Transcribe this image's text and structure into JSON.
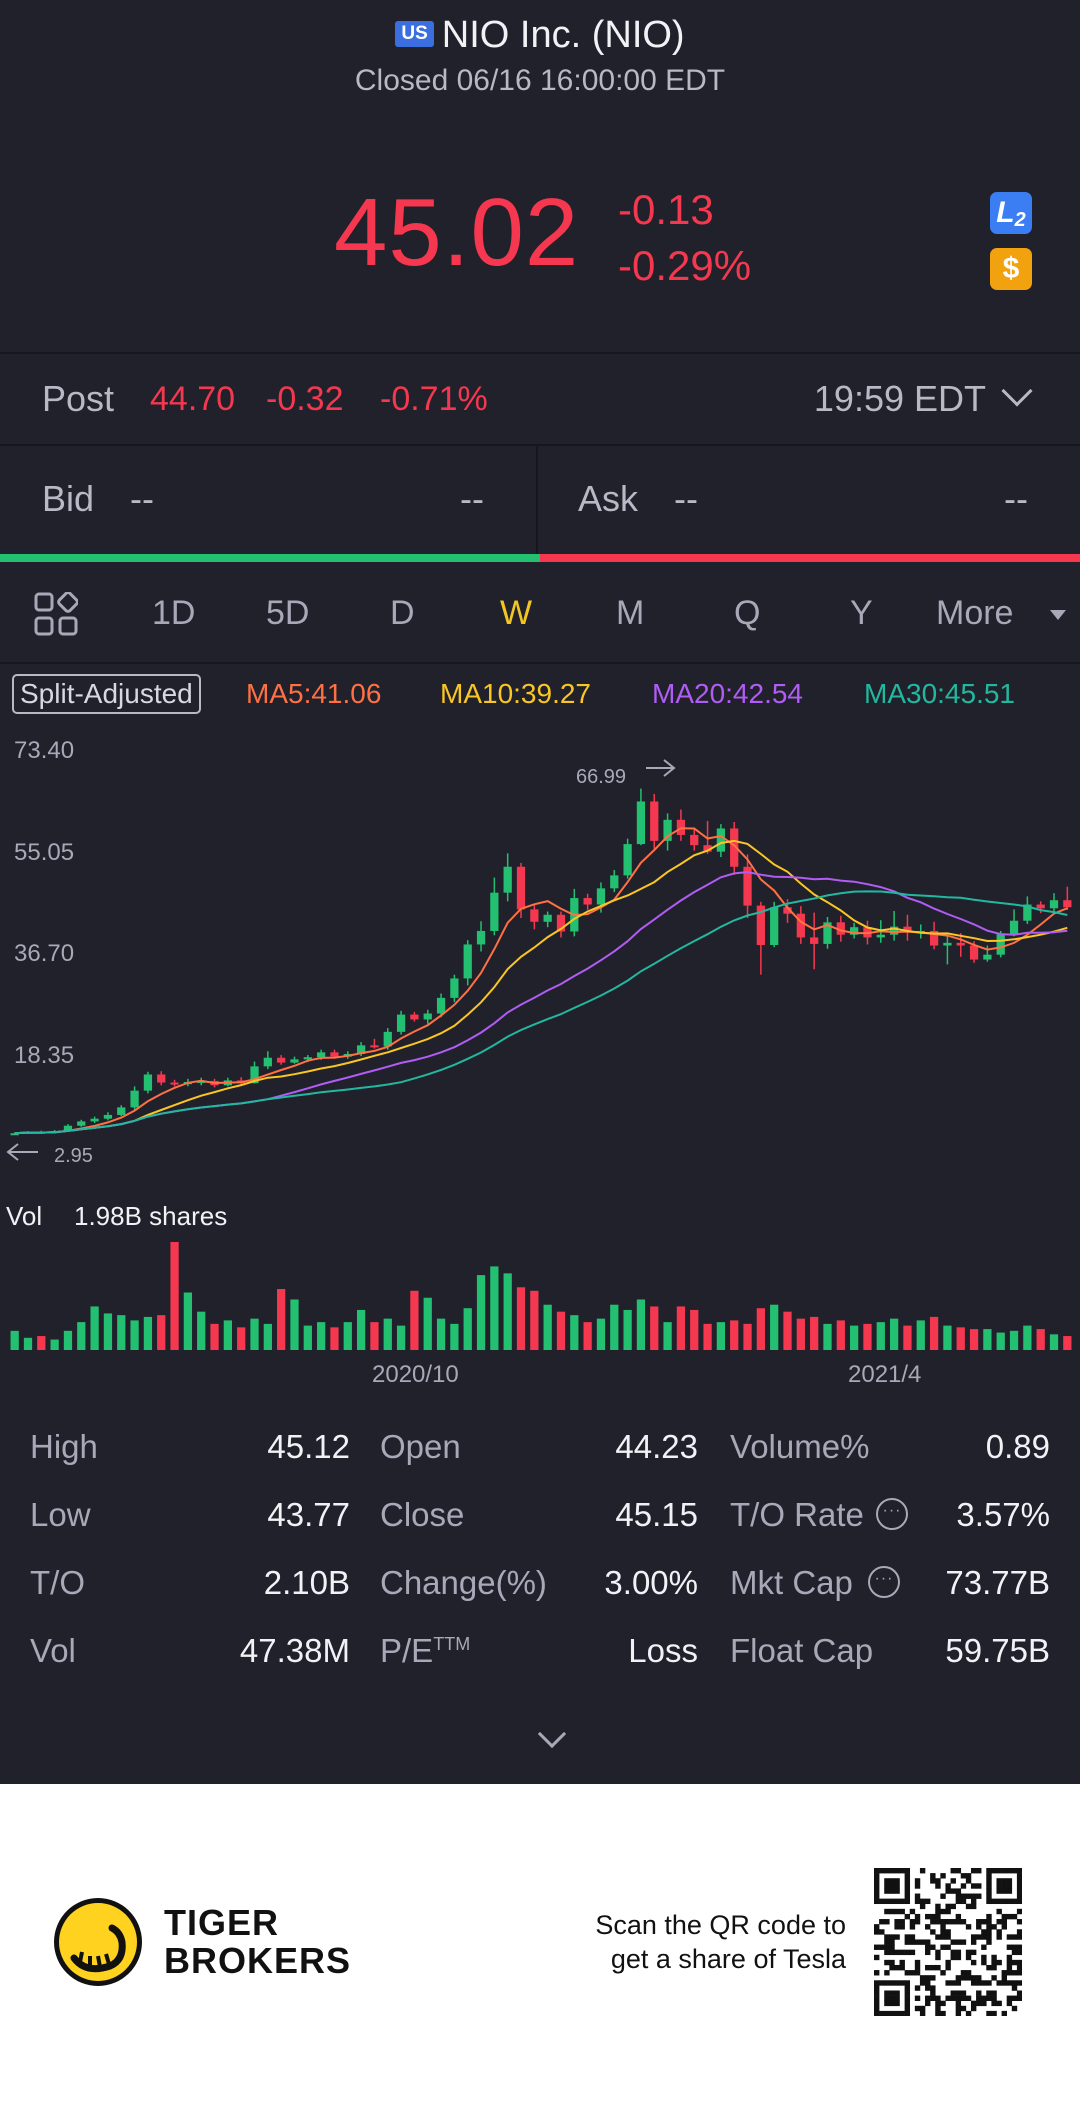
{
  "header": {
    "market_badge": "US",
    "title": "NIO Inc. (NIO)",
    "status": "Closed 06/16 16:00:00 EDT"
  },
  "quote": {
    "price": "45.02",
    "change": "-0.13",
    "change_pct": "-0.29%",
    "l2_badge": "L2",
    "dollar_badge": "$"
  },
  "post": {
    "label": "Post",
    "price": "44.70",
    "change": "-0.32",
    "change_pct": "-0.71%",
    "time": "19:59 EDT"
  },
  "bidask": {
    "bid_label": "Bid",
    "bid_value": "--",
    "bid_size": "--",
    "ask_label": "Ask",
    "ask_value": "--",
    "ask_size": "--"
  },
  "periods": {
    "items": [
      "1D",
      "5D",
      "D",
      "W",
      "M",
      "Q",
      "Y"
    ],
    "active": "W",
    "more_label": "More"
  },
  "indicators": {
    "split_label": "Split-Adjusted",
    "ma5": "MA5:41.06",
    "ma10": "MA10:39.27",
    "ma20": "MA20:42.54",
    "ma30": "MA30:45.51",
    "colors": {
      "ma5": "#ff7043",
      "ma10": "#f9c623",
      "ma20": "#b05cf5",
      "ma30": "#22b8a0",
      "up": "#22c070",
      "down": "#f5384f"
    }
  },
  "chart_data": {
    "type": "candlestick",
    "y_ticks": [
      "73.40",
      "55.05",
      "36.70",
      "18.35"
    ],
    "high_marker": "66.99",
    "low_marker": "2.95",
    "x_ticks": [
      "2020/10",
      "2021/4"
    ],
    "volume_label": "Vol",
    "volume_value": "1.98B shares",
    "ylim": [
      0,
      73.4
    ],
    "candles": [
      [
        3.0,
        3.1,
        2.95,
        3.2
      ],
      [
        3.1,
        3.4,
        3.0,
        3.5
      ],
      [
        3.4,
        3.2,
        3.1,
        3.6
      ],
      [
        3.2,
        3.5,
        3.1,
        3.7
      ],
      [
        3.5,
        4.5,
        3.4,
        4.8
      ],
      [
        4.5,
        5.3,
        4.3,
        5.6
      ],
      [
        5.3,
        5.8,
        5.0,
        6.2
      ],
      [
        5.8,
        6.5,
        5.5,
        7.0
      ],
      [
        6.5,
        7.9,
        6.3,
        8.3
      ],
      [
        7.9,
        11.0,
        7.5,
        11.8
      ],
      [
        11.0,
        14.0,
        10.5,
        14.5
      ],
      [
        14.0,
        12.5,
        12.0,
        14.6
      ],
      [
        12.5,
        12.2,
        11.8,
        13.0
      ],
      [
        12.2,
        12.6,
        11.8,
        13.2
      ],
      [
        12.6,
        12.8,
        12.0,
        13.4
      ],
      [
        12.8,
        12.0,
        11.6,
        13.2
      ],
      [
        12.0,
        12.9,
        11.8,
        13.4
      ],
      [
        12.9,
        12.4,
        12.0,
        13.5
      ],
      [
        12.4,
        15.5,
        12.3,
        16.4
      ],
      [
        15.5,
        17.1,
        15.0,
        18.3
      ],
      [
        17.1,
        16.2,
        15.8,
        17.6
      ],
      [
        16.2,
        16.8,
        16.0,
        17.3
      ],
      [
        16.8,
        17.2,
        16.3,
        17.6
      ],
      [
        17.2,
        18.1,
        16.7,
        18.6
      ],
      [
        18.1,
        17.3,
        16.9,
        18.6
      ],
      [
        17.3,
        17.8,
        16.9,
        18.3
      ],
      [
        17.8,
        19.4,
        17.4,
        20.0
      ],
      [
        19.4,
        19.2,
        18.8,
        20.6
      ],
      [
        19.2,
        21.9,
        18.6,
        22.6
      ],
      [
        21.9,
        25.1,
        21.4,
        25.8
      ],
      [
        25.1,
        24.2,
        23.8,
        25.6
      ],
      [
        24.2,
        25.3,
        23.4,
        26.0
      ],
      [
        25.3,
        28.2,
        24.6,
        29.0
      ],
      [
        28.2,
        31.8,
        27.4,
        32.5
      ],
      [
        31.8,
        38.1,
        30.5,
        38.9
      ],
      [
        38.1,
        40.6,
        36.8,
        42.4
      ],
      [
        40.6,
        47.7,
        39.8,
        50.5
      ],
      [
        47.7,
        52.5,
        46.1,
        55.0
      ],
      [
        52.5,
        44.6,
        43.0,
        53.2
      ],
      [
        44.6,
        42.3,
        40.9,
        45.5
      ],
      [
        42.3,
        43.6,
        41.3,
        44.2
      ],
      [
        43.6,
        40.5,
        39.4,
        44.2
      ],
      [
        40.5,
        46.7,
        39.6,
        48.4
      ],
      [
        46.7,
        45.5,
        44.5,
        47.5
      ],
      [
        45.5,
        48.5,
        44.0,
        49.6
      ],
      [
        48.5,
        50.9,
        47.8,
        51.9
      ],
      [
        50.9,
        56.7,
        50.3,
        57.7
      ],
      [
        56.7,
        64.6,
        56.5,
        66.99
      ],
      [
        64.6,
        57.3,
        55.8,
        66.0
      ],
      [
        57.3,
        61.2,
        55.5,
        62.4
      ],
      [
        61.2,
        58.4,
        57.3,
        63.1
      ],
      [
        58.4,
        56.5,
        55.5,
        59.7
      ],
      [
        56.5,
        55.3,
        54.9,
        61.0
      ],
      [
        55.3,
        59.6,
        54.3,
        60.4
      ],
      [
        59.6,
        52.5,
        51.0,
        60.8
      ],
      [
        52.5,
        45.3,
        43.0,
        54.8
      ],
      [
        45.3,
        38.0,
        32.5,
        46.0
      ],
      [
        38.0,
        45.0,
        37.6,
        46.0
      ],
      [
        45.0,
        43.8,
        42.1,
        46.5
      ],
      [
        43.8,
        39.4,
        38.2,
        45.2
      ],
      [
        39.4,
        38.2,
        33.5,
        44.0
      ],
      [
        38.2,
        42.2,
        37.3,
        43.2
      ],
      [
        42.2,
        39.9,
        38.6,
        43.4
      ],
      [
        39.9,
        41.3,
        39.2,
        42.1
      ],
      [
        41.3,
        39.4,
        38.1,
        42.5
      ],
      [
        39.4,
        39.9,
        38.4,
        42.6
      ],
      [
        39.9,
        41.4,
        38.8,
        44.3
      ],
      [
        41.4,
        40.4,
        38.8,
        43.6
      ],
      [
        40.4,
        40.6,
        39.2,
        41.8
      ],
      [
        40.6,
        37.9,
        37.2,
        42.3
      ],
      [
        37.9,
        38.4,
        34.4,
        39.7
      ],
      [
        38.4,
        37.9,
        35.8,
        40.2
      ],
      [
        37.9,
        35.3,
        34.7,
        38.7
      ],
      [
        35.3,
        36.2,
        34.9,
        37.9
      ],
      [
        36.2,
        40.0,
        35.7,
        40.6
      ],
      [
        40.0,
        42.5,
        39.6,
        44.6
      ],
      [
        42.5,
        45.5,
        41.9,
        47.0
      ],
      [
        45.5,
        44.8,
        43.9,
        46.1
      ],
      [
        44.8,
        46.3,
        44.1,
        47.6
      ],
      [
        46.3,
        45.0,
        44.5,
        48.8
      ]
    ],
    "volumes": [
      0.55,
      0.35,
      0.4,
      0.3,
      0.55,
      0.8,
      1.25,
      1.05,
      1.0,
      0.85,
      0.95,
      1.0,
      3.1,
      1.65,
      1.1,
      0.75,
      0.85,
      0.65,
      0.9,
      0.75,
      1.75,
      1.45,
      0.7,
      0.8,
      0.65,
      0.8,
      1.15,
      0.8,
      0.9,
      0.7,
      1.7,
      1.5,
      0.9,
      0.75,
      1.2,
      2.15,
      2.4,
      2.2,
      1.8,
      1.7,
      1.3,
      1.1,
      1.0,
      0.8,
      0.9,
      1.3,
      1.15,
      1.45,
      1.25,
      0.8,
      1.25,
      1.15,
      0.75,
      0.8,
      0.85,
      0.75,
      1.2,
      1.3,
      1.1,
      0.9,
      0.95,
      0.75,
      0.85,
      0.7,
      0.75,
      0.8,
      0.9,
      0.7,
      0.85,
      0.95,
      0.7,
      0.65,
      0.6,
      0.6,
      0.5,
      0.55,
      0.7,
      0.6,
      0.45,
      0.4
    ]
  },
  "stats": [
    {
      "label": "High",
      "value": "45.12"
    },
    {
      "label": "Low",
      "value": "43.77"
    },
    {
      "label": "T/O",
      "value": "2.10B"
    },
    {
      "label": "Vol",
      "value": "47.38M"
    },
    {
      "label": "Open",
      "value": "44.23"
    },
    {
      "label": "Close",
      "value": "45.15"
    },
    {
      "label": "Change(%)",
      "value": "3.00%"
    },
    {
      "label": "P/E",
      "label_sup": "TTM",
      "value": "Loss"
    },
    {
      "label": "Volume%",
      "value": "0.89"
    },
    {
      "label": "T/O Rate",
      "value": "3.57%"
    },
    {
      "label": "Mkt Cap",
      "value": "73.77B"
    },
    {
      "label": "Float Cap",
      "value": "59.75B"
    }
  ],
  "footer": {
    "brand_line1": "TIGER",
    "brand_line2": "BROKERS",
    "promo_line1": "Scan the QR code to",
    "promo_line2": "get a share of Tesla"
  }
}
